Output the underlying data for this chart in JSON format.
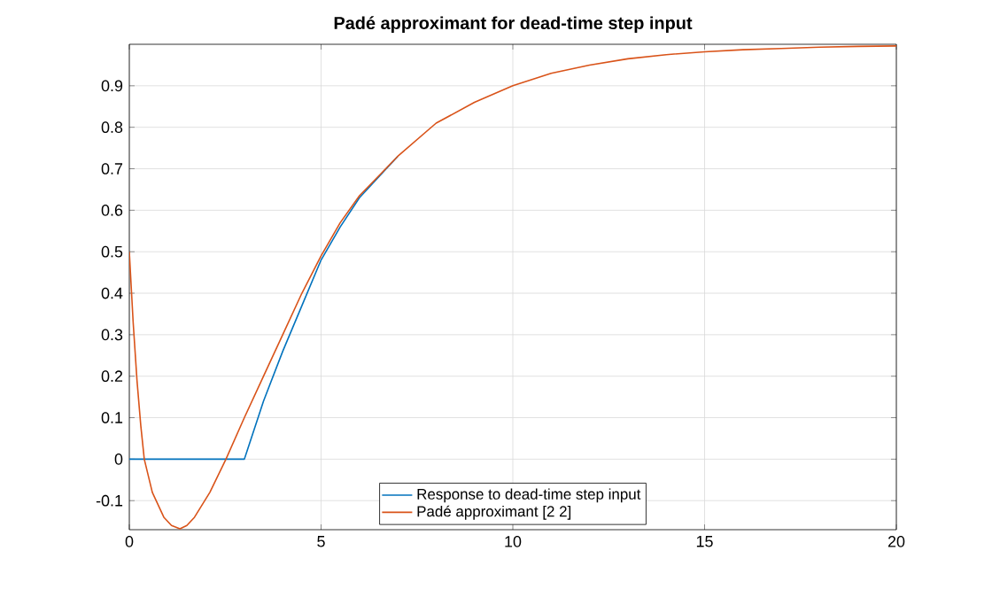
{
  "chart_data": {
    "type": "line",
    "title": "Padé approximant for dead-time step input",
    "xlim": [
      0,
      20
    ],
    "ylim": [
      -0.17,
      1
    ],
    "xticks": [
      0,
      5,
      10,
      15,
      20
    ],
    "yticks": [
      -0.1,
      0,
      0.1,
      0.2,
      0.3,
      0.4,
      0.5,
      0.6,
      0.7,
      0.8,
      0.9
    ],
    "grid": true,
    "legend": "bottom",
    "series": [
      {
        "name": "Response to dead-time step input",
        "color": "#0072bd",
        "x": [
          0,
          3,
          3.5,
          4,
          4.5,
          5,
          5.5,
          6,
          7
        ],
        "values": [
          0,
          0,
          0.14,
          0.26,
          0.37,
          0.48,
          0.56,
          0.63,
          0.73
        ]
      },
      {
        "name": "Padé approximant [2 2]",
        "color": "#d95319",
        "x": [
          0,
          0.1,
          0.2,
          0.3,
          0.39,
          0.6,
          0.9,
          1.1,
          1.32,
          1.5,
          1.7,
          2.1,
          2.52,
          3,
          3.5,
          4,
          4.5,
          5,
          5.5,
          6,
          7,
          8,
          9,
          10,
          11,
          12,
          13,
          14,
          15,
          16,
          17,
          18,
          19,
          20
        ],
        "values": [
          0.5,
          0.33,
          0.19,
          0.08,
          0,
          -0.08,
          -0.14,
          -0.16,
          -0.168,
          -0.16,
          -0.14,
          -0.08,
          0,
          0.1,
          0.2,
          0.3,
          0.4,
          0.49,
          0.57,
          0.635,
          0.73,
          0.81,
          0.86,
          0.9,
          0.93,
          0.95,
          0.965,
          0.975,
          0.982,
          0.987,
          0.99,
          0.993,
          0.995,
          0.996
        ]
      }
    ]
  }
}
